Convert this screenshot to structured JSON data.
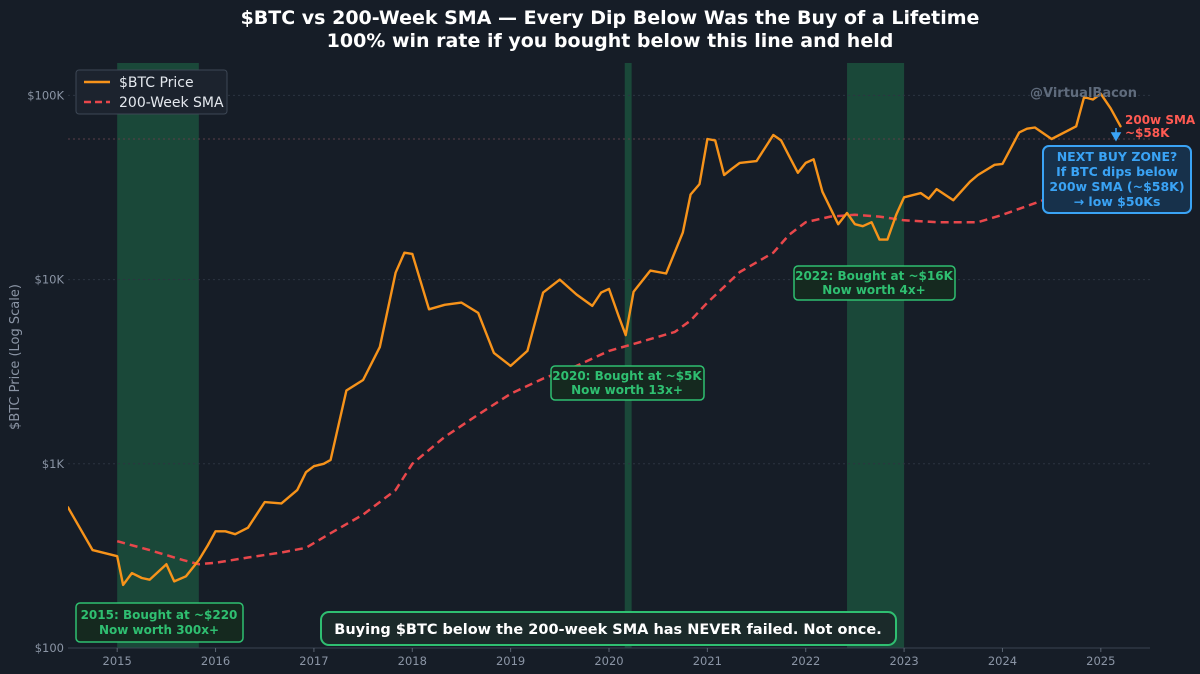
{
  "chart_data": {
    "type": "line",
    "title": "$BTC vs 200-Week SMA — Every Dip Below Was the Buy of a Lifetime",
    "subtitle": "100% win rate if you bought below this line and held",
    "ylabel": "$BTC Price (Log Scale)",
    "xlabel": "",
    "yscale": "log",
    "ylim": [
      100,
      150000
    ],
    "xlim": [
      2014.5,
      2025.5
    ],
    "x_ticks": [
      2015,
      2016,
      2017,
      2018,
      2019,
      2020,
      2021,
      2022,
      2023,
      2024,
      2025
    ],
    "x_tick_labels": [
      "2015",
      "2016",
      "2017",
      "2018",
      "2019",
      "2020",
      "2021",
      "2022",
      "2023",
      "2024",
      "2025"
    ],
    "y_ticks": [
      100,
      1000,
      10000,
      100000
    ],
    "y_tick_labels": [
      "$100",
      "$1K",
      "$10K",
      "$100K"
    ],
    "legend_position": "top-left",
    "watermark": "@VirtualBacon",
    "colors": {
      "price": "#f7931a",
      "sma": "#e8474b",
      "zone": "#1f6b48",
      "green_text": "#2fbf71",
      "blue": "#3aa3f5",
      "background": "#161d27"
    },
    "series": [
      {
        "name": "$BTC Price",
        "style": "solid",
        "x": [
          2014.5,
          2014.75,
          2015.0,
          2015.06,
          2015.15,
          2015.25,
          2015.33,
          2015.5,
          2015.58,
          2015.7,
          2015.83,
          2015.92,
          2016.0,
          2016.1,
          2016.2,
          2016.33,
          2016.5,
          2016.67,
          2016.83,
          2016.92,
          2017.0,
          2017.1,
          2017.17,
          2017.33,
          2017.5,
          2017.67,
          2017.83,
          2017.92,
          2018.0,
          2018.17,
          2018.33,
          2018.5,
          2018.67,
          2018.83,
          2019.0,
          2019.17,
          2019.33,
          2019.5,
          2019.67,
          2019.83,
          2019.92,
          2020.0,
          2020.1,
          2020.17,
          2020.25,
          2020.42,
          2020.58,
          2020.75,
          2020.83,
          2020.92,
          2021.0,
          2021.08,
          2021.17,
          2021.25,
          2021.33,
          2021.5,
          2021.67,
          2021.75,
          2021.83,
          2021.92,
          2022.0,
          2022.08,
          2022.17,
          2022.33,
          2022.42,
          2022.5,
          2022.58,
          2022.67,
          2022.75,
          2022.83,
          2022.92,
          2023.0,
          2023.17,
          2023.25,
          2023.33,
          2023.5,
          2023.67,
          2023.75,
          2023.92,
          2024.0,
          2024.17,
          2024.25,
          2024.33,
          2024.5,
          2024.75,
          2024.83,
          2024.92,
          2025.0,
          2025.1,
          2025.2
        ],
        "values": [
          580,
          340,
          315,
          220,
          255,
          240,
          235,
          285,
          230,
          245,
          300,
          360,
          430,
          430,
          415,
          450,
          620,
          610,
          720,
          900,
          970,
          1000,
          1050,
          2500,
          2850,
          4300,
          10900,
          14000,
          13800,
          6900,
          7300,
          7500,
          6600,
          4000,
          3400,
          4100,
          8500,
          10000,
          8300,
          7200,
          8500,
          8900,
          6300,
          5000,
          8600,
          11200,
          10800,
          18000,
          29000,
          33000,
          58000,
          57000,
          37000,
          40000,
          43000,
          44000,
          61000,
          57000,
          47000,
          38000,
          43000,
          45000,
          30000,
          20000,
          23000,
          20000,
          19500,
          20500,
          16500,
          16500,
          22500,
          28000,
          29500,
          27500,
          31000,
          27000,
          34000,
          37000,
          42000,
          42500,
          63000,
          66000,
          67000,
          58000,
          68000,
          98000,
          95000,
          102000,
          85000,
          68000
        ]
      },
      {
        "name": "200-Week SMA",
        "style": "dashed",
        "x": [
          2015.0,
          2015.33,
          2015.67,
          2015.83,
          2016.0,
          2016.33,
          2016.67,
          2016.92,
          2017.17,
          2017.5,
          2017.83,
          2018.0,
          2018.33,
          2018.67,
          2019.0,
          2019.33,
          2019.67,
          2020.0,
          2020.33,
          2020.67,
          2020.83,
          2021.0,
          2021.33,
          2021.67,
          2021.83,
          2022.0,
          2022.25,
          2022.5,
          2022.75,
          2023.0,
          2023.33,
          2023.75,
          2024.0,
          2024.33,
          2024.5
        ],
        "values": [
          380,
          340,
          300,
          285,
          290,
          310,
          330,
          350,
          420,
          530,
          720,
          1000,
          1400,
          1850,
          2400,
          2900,
          3400,
          4100,
          4600,
          5200,
          6000,
          7500,
          11000,
          14000,
          17500,
          20500,
          22000,
          22500,
          22000,
          21000,
          20500,
          20500,
          22500,
          26000,
          28000
        ]
      }
    ],
    "buy_zones": [
      [
        2015.0,
        2015.83
      ],
      [
        2020.16,
        2020.23
      ],
      [
        2022.42,
        2023.0
      ]
    ],
    "reference_line": {
      "value": 58000,
      "label_line1": "200w SMA",
      "label_line2": "~$58K"
    },
    "annotations": {
      "a2015": {
        "line1": "2015: Bought at ~$220",
        "line2": "Now worth 300x+"
      },
      "a2020": {
        "line1": "2020: Bought at ~$5K",
        "line2": "Now worth 13x+"
      },
      "a2022": {
        "line1": "2022: Bought at ~$16K",
        "line2": "Now worth 4x+"
      },
      "next_zone": {
        "line1": "NEXT BUY ZONE?",
        "line2": "If BTC dips below",
        "line3": "200w SMA (~$58K)",
        "line4": "→ low $50Ks"
      },
      "bottom": "Buying $BTC below the 200-week SMA has NEVER failed. Not once."
    }
  }
}
